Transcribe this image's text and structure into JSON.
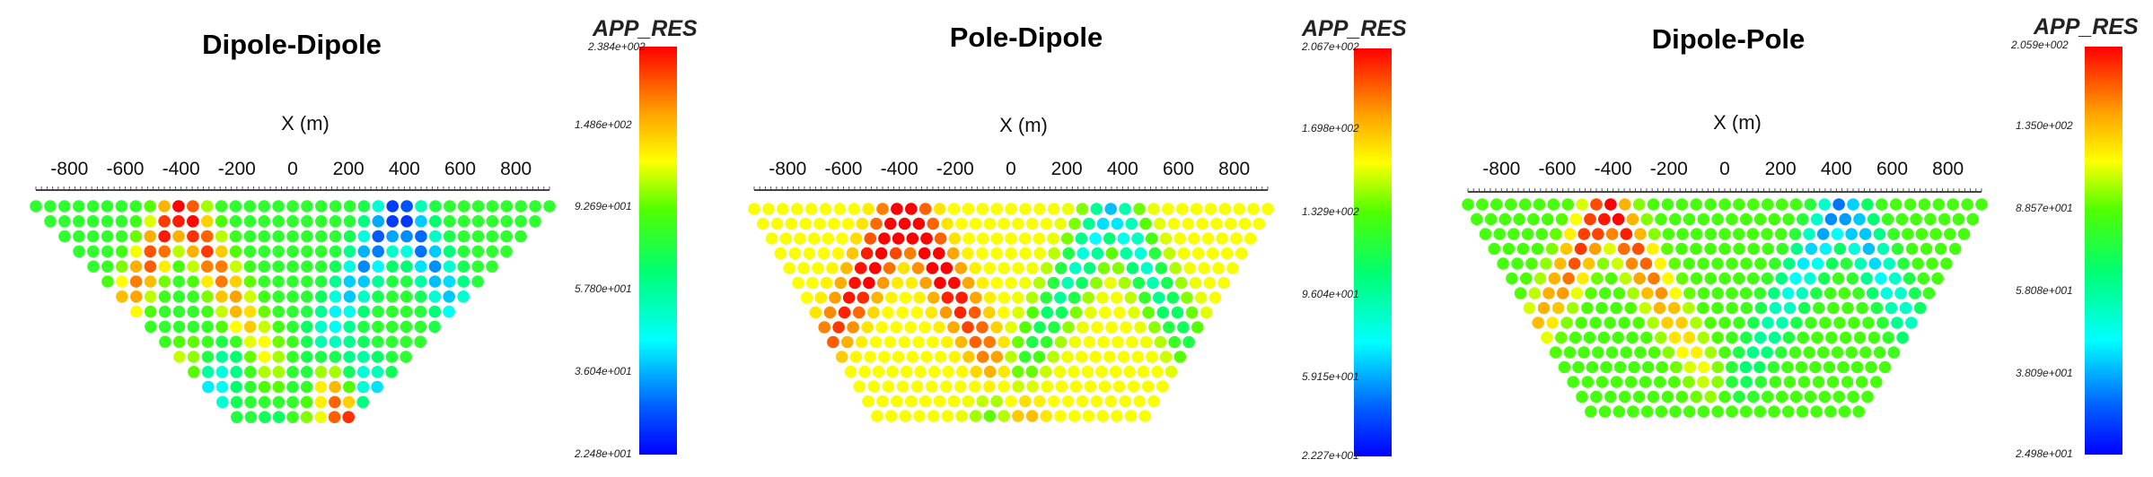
{
  "colors": {
    "jet": [
      "#0000ff",
      "#0080ff",
      "#00ffff",
      "#00ff80",
      "#40ff00",
      "#c0ff00",
      "#ffff00",
      "#ffb000",
      "#ff6000",
      "#ff0000"
    ],
    "axis": "#444444",
    "background": "#ffffff"
  },
  "chart_data": [
    {
      "type": "heatmap",
      "method": "Dipole-Dipole",
      "title": "Dipole-Dipole",
      "xlabel": "X (m)",
      "x_ticks": [
        "-800",
        "-600",
        "-400",
        "-200",
        "0",
        "200",
        "400",
        "600",
        "800"
      ],
      "xlim": [
        -920,
        920
      ],
      "colorbar": {
        "title": "APP_RES",
        "tick_labels": [
          "2.384e+002",
          "1.486e+002",
          "9.269e+001",
          "5.780e+001",
          "3.604e+001",
          "2.248e+001"
        ],
        "min": 22.48,
        "max": 238.4,
        "scale": "log"
      },
      "pseudosection": {
        "levels": 15,
        "points_per_level_top": 37,
        "top_x": -920,
        "spacing_x": 51,
        "bottom_x": -200,
        "bottom_x_end": 200
      },
      "anomalies": [
        {
          "type": "high",
          "x_surface": -400,
          "peak_log_offset": 1.0
        },
        {
          "type": "high",
          "x_surface": -150,
          "level_bias": "deep",
          "peak_log_offset": 0.9
        },
        {
          "type": "low",
          "x_surface": 380,
          "peak_log_offset": -1.0
        },
        {
          "type": "low",
          "x_surface": 0,
          "level_bias": "deep",
          "peak_log_offset": -0.9
        }
      ],
      "background_value": 80
    },
    {
      "type": "heatmap",
      "method": "Pole-Dipole",
      "title": "Pole-Dipole",
      "xlabel": "X (m)",
      "x_ticks": [
        "-800",
        "-600",
        "-400",
        "-200",
        "0",
        "200",
        "400",
        "600",
        "800"
      ],
      "xlim": [
        -920,
        920
      ],
      "colorbar": {
        "title": "APP_RES",
        "tick_labels": [
          "2.067e+002",
          "1.698e+002",
          "1.329e+002",
          "9.604e+001",
          "5.915e+001",
          "2.227e+001"
        ],
        "min": 22.27,
        "max": 206.7,
        "scale": "linear"
      },
      "pseudosection": {
        "levels": 15,
        "points_per_level_top": 37,
        "top_x": -920,
        "spacing_x": 51,
        "bottom_x": -480,
        "bottom_x_end": 480
      },
      "anomalies": [
        {
          "type": "high",
          "x_surface": -380,
          "peak_log_offset": 0.9
        },
        {
          "type": "low",
          "x_surface": 360,
          "peak_log_offset": -1.0
        }
      ],
      "background_value": 110
    },
    {
      "type": "heatmap",
      "method": "Dipole-Pole",
      "title": "Dipole-Pole",
      "xlabel": "X (m)",
      "x_ticks": [
        "-800",
        "-600",
        "-400",
        "-200",
        "0",
        "200",
        "400",
        "600",
        "800"
      ],
      "xlim": [
        -920,
        920
      ],
      "colorbar": {
        "title": "APP_RES",
        "tick_labels": [
          "2.059e+002",
          "1.350e+002",
          "8.857e+001",
          "5.808e+001",
          "3.809e+001",
          "2.498e+001"
        ],
        "min": 24.98,
        "max": 205.9,
        "scale": "log"
      },
      "pseudosection": {
        "levels": 15,
        "points_per_level_top": 37,
        "top_x": -920,
        "spacing_x": 51,
        "bottom_x": -480,
        "bottom_x_end": 480
      },
      "anomalies": [
        {
          "type": "high",
          "x_surface": -420,
          "peak_log_offset": 0.9
        },
        {
          "type": "low",
          "x_surface": 420,
          "peak_log_offset": -0.9
        }
      ],
      "background_value": 85
    }
  ]
}
